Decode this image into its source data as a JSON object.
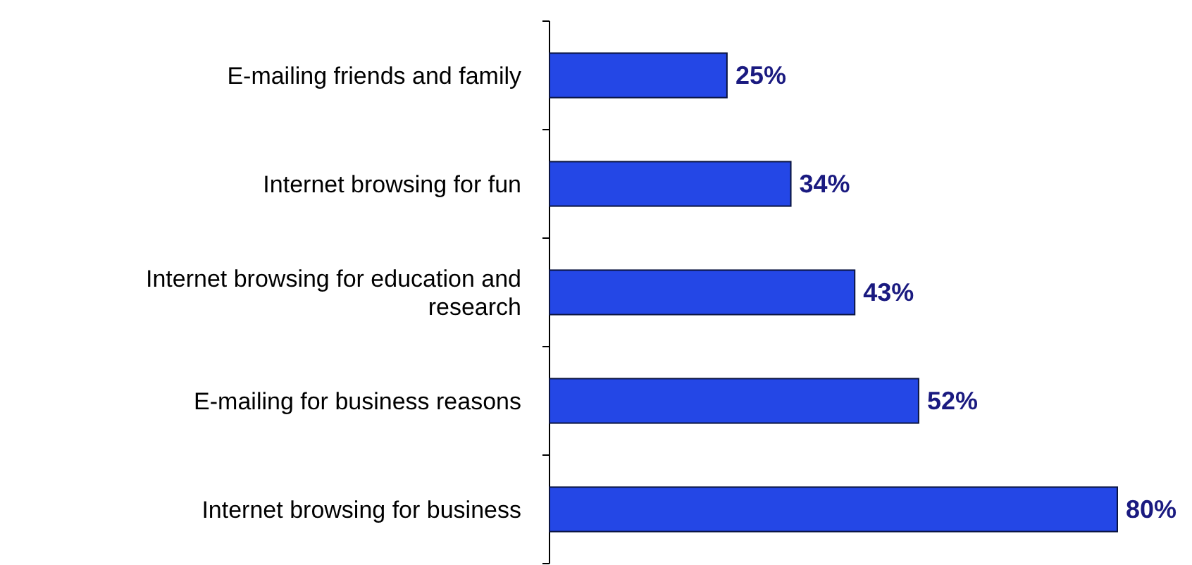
{
  "chart_data": {
    "type": "bar",
    "orientation": "horizontal",
    "categories": [
      "E-mailing friends and family",
      "Internet browsing for fun",
      "Internet browsing for education and research",
      "E-mailing for business reasons",
      "Internet browsing for business"
    ],
    "values": [
      25,
      34,
      43,
      52,
      80
    ],
    "value_labels": [
      "25%",
      "34%",
      "43%",
      "52%",
      "80%"
    ],
    "color": "#2447e6"
  }
}
